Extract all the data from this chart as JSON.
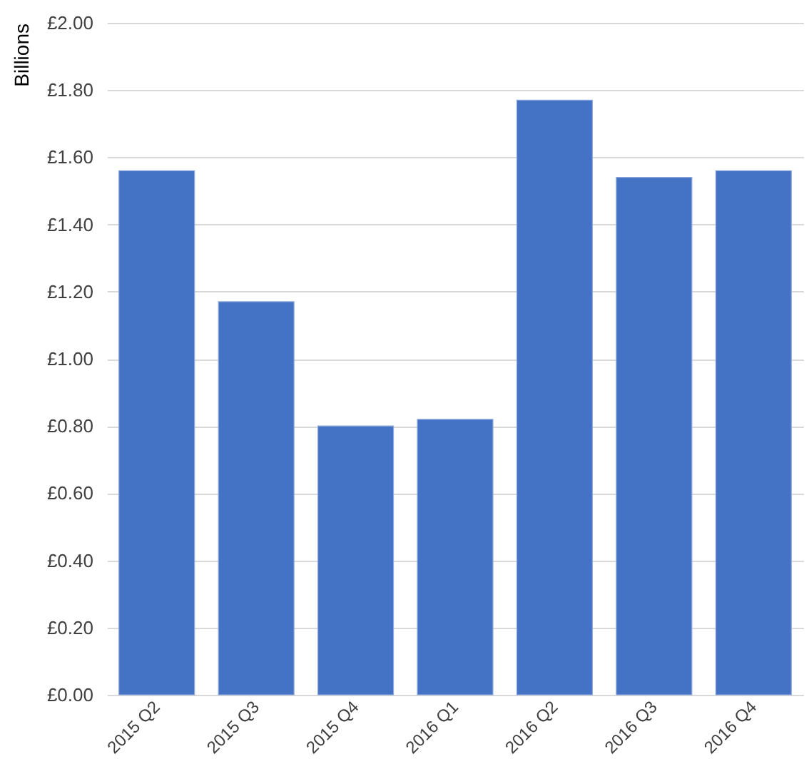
{
  "chart_data": {
    "type": "bar",
    "ylabel": "Billions",
    "categories": [
      "2015 Q2",
      "2015 Q3",
      "2015 Q4",
      "2016 Q1",
      "2016 Q2",
      "2016 Q3",
      "2016 Q4"
    ],
    "values": [
      1.56,
      1.17,
      0.8,
      0.82,
      1.77,
      1.54,
      1.56
    ],
    "color": "#4472c4",
    "ylim": [
      0,
      2
    ],
    "yticks": [
      {
        "value": 0,
        "label": "£0.00"
      },
      {
        "value": 0.2,
        "label": "£0.20"
      },
      {
        "value": 0.4,
        "label": "£0.40"
      },
      {
        "value": 0.6,
        "label": "£0.60"
      },
      {
        "value": 0.8,
        "label": "£0.80"
      },
      {
        "value": 1.0,
        "label": "£1.00"
      },
      {
        "value": 1.2,
        "label": "£1.20"
      },
      {
        "value": 1.4,
        "label": "£1.40"
      },
      {
        "value": 1.6,
        "label": "£1.60"
      },
      {
        "value": 1.8,
        "label": "£1.80"
      },
      {
        "value": 2.0,
        "label": "£2.00"
      }
    ],
    "grid": "y"
  }
}
